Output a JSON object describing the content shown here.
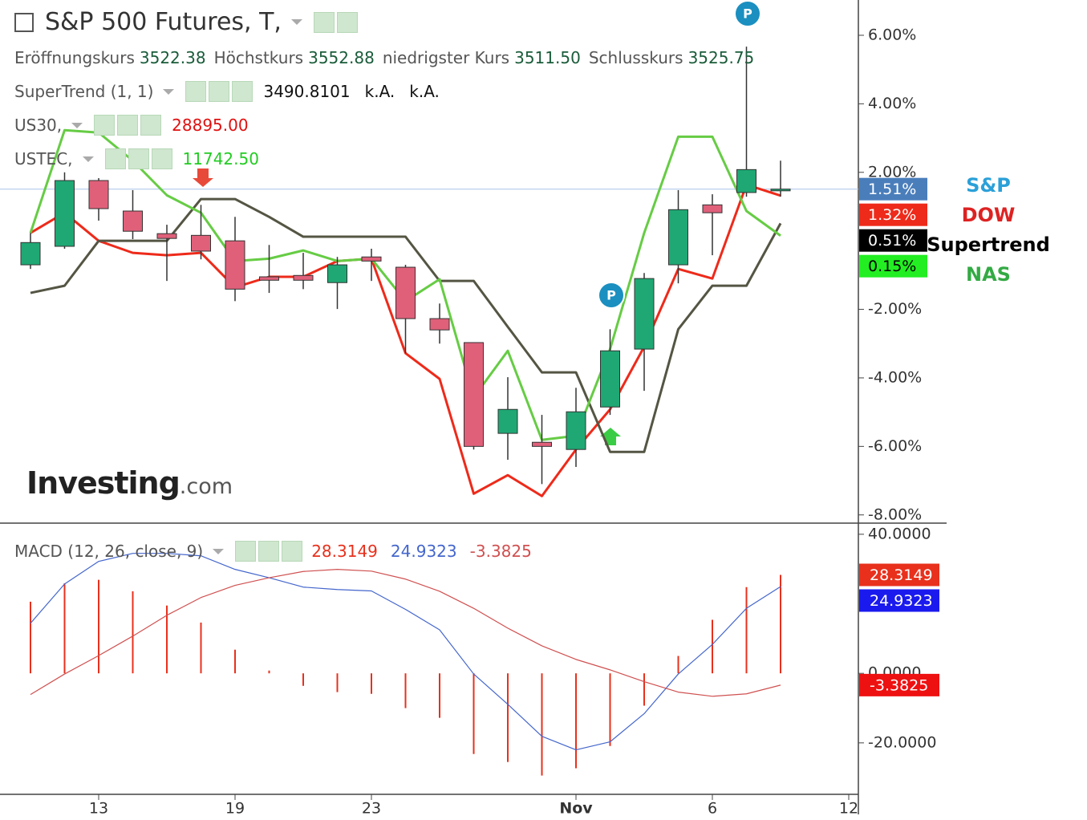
{
  "chart_data": [
    {
      "type": "candlestick",
      "title": "S&P 500 Futures, T,",
      "pivot_label": "P",
      "ohlc": [
        {
          "label": "Eröffnungskurs",
          "value": "3522.38"
        },
        {
          "label": "Höchstkurs",
          "value": "3552.88"
        },
        {
          "label": "niedrigster Kurs",
          "value": "3511.50"
        },
        {
          "label": "Schlusskurs",
          "value": "3525.75"
        }
      ],
      "indicators": [
        {
          "name": "SuperTrend (1, 1)",
          "color": "#111111",
          "values": [
            "3490.8101",
            "k.A.",
            "k.A."
          ]
        },
        {
          "name": "US30,",
          "color": "#e01010",
          "values": [
            "28895.00"
          ]
        },
        {
          "name": "USTEC,",
          "color": "#22cc22",
          "values": [
            "11742.50"
          ]
        }
      ],
      "categories": [
        null,
        null,
        "13",
        null,
        null,
        null,
        "19",
        null,
        null,
        null,
        "23",
        null,
        null,
        null,
        null,
        null,
        "Nov",
        null,
        null,
        null,
        "6",
        null,
        null,
        null,
        "12"
      ],
      "ylim": [
        -8.24,
        7.03
      ],
      "yticks": [
        {
          "value": 6,
          "label": "6.00%"
        },
        {
          "value": 4,
          "label": "4.00%"
        },
        {
          "value": 2,
          "label": "2.00%"
        },
        {
          "value": -2,
          "label": "-2.00%"
        },
        {
          "value": -4,
          "label": "-4.00%"
        },
        {
          "value": -6,
          "label": "-6.00%"
        },
        {
          "value": -8,
          "label": "-8.00%"
        }
      ],
      "series": [
        {
          "name": "S&P",
          "type": "candlestick",
          "color": "#4a7ebb",
          "label_color": "#2ba0d8",
          "up_color": "#1fa874",
          "down_color": "#e0607a",
          "open": [
            -0.7,
            -0.16,
            1.76,
            0.87,
            0.21,
            0.16,
            0.0,
            -1.05,
            -1.01,
            -1.22,
            -0.47,
            -0.77,
            -2.27,
            -2.97,
            -5.62,
            -5.88,
            -6.09,
            -4.85,
            -3.16,
            -0.7,
            1.05,
            1.41,
            1.46,
            null,
            null
          ],
          "high": [
            0.23,
            2.0,
            1.83,
            1.48,
            0.47,
            1.05,
            0.7,
            -0.12,
            -0.35,
            -0.47,
            -0.23,
            -0.7,
            -1.83,
            -2.97,
            -3.98,
            -5.08,
            -4.29,
            -2.58,
            -0.94,
            1.48,
            1.36,
            5.67,
            2.34,
            null,
            null
          ],
          "low": [
            -0.82,
            -0.23,
            0.59,
            0.05,
            -1.17,
            -0.54,
            -1.76,
            -1.52,
            -1.41,
            -1.99,
            -1.17,
            -3.28,
            -3.0,
            -6.09,
            -6.39,
            -7.1,
            -6.6,
            -5.08,
            -4.38,
            -1.24,
            -0.42,
            1.29,
            1.29,
            null,
            null
          ],
          "close": [
            -0.05,
            1.76,
            0.94,
            0.28,
            0.07,
            -0.3,
            -1.41,
            -1.15,
            -1.15,
            -0.7,
            -0.59,
            -2.27,
            -2.6,
            -6.0,
            -4.92,
            -6.0,
            -4.99,
            -3.21,
            -1.1,
            0.91,
            0.82,
            2.08,
            1.51,
            null,
            null
          ],
          "value_labels": [
            null,
            null,
            null,
            null,
            null,
            null,
            null,
            null,
            null,
            null,
            null,
            null,
            null,
            null,
            null,
            null,
            null,
            null,
            null,
            null,
            null,
            null,
            "1.51%",
            null,
            null
          ]
        },
        {
          "name": "DOW",
          "type": "line",
          "color": "#ee2a1a",
          "label_color": "#dd2222",
          "values": [
            0.23,
            0.82,
            0.0,
            -0.35,
            -0.42,
            -0.35,
            -1.36,
            -1.05,
            -1.05,
            -0.59,
            -0.52,
            -3.28,
            -4.03,
            -7.38,
            -6.84,
            -7.45,
            -6.09,
            -4.92,
            -3.09,
            -0.82,
            -1.1,
            1.64,
            1.32,
            null,
            null
          ],
          "value_labels": [
            null,
            null,
            null,
            null,
            null,
            null,
            null,
            null,
            null,
            null,
            null,
            null,
            null,
            null,
            null,
            null,
            null,
            null,
            null,
            null,
            null,
            null,
            "1.32%",
            null,
            null
          ]
        },
        {
          "name": "Supertrend",
          "type": "line",
          "color": "#000000",
          "line_color": "#555544",
          "label_color": "#000000",
          "values": [
            -1.52,
            -1.31,
            0.0,
            0.0,
            0.0,
            1.22,
            1.22,
            0.7,
            0.12,
            0.12,
            0.12,
            0.12,
            -1.17,
            -1.17,
            -2.51,
            -3.84,
            -3.84,
            -6.16,
            -6.16,
            -2.58,
            -1.31,
            -1.31,
            0.51,
            null,
            null
          ],
          "value_labels": [
            null,
            null,
            null,
            null,
            null,
            null,
            null,
            null,
            null,
            null,
            null,
            null,
            null,
            null,
            null,
            null,
            null,
            null,
            null,
            null,
            null,
            null,
            "0.51%",
            null,
            null
          ]
        },
        {
          "name": "NAS",
          "type": "line",
          "color": "#22ee22",
          "line_color": "#66cc44",
          "label_color": "#33aa44",
          "values": [
            0.23,
            3.23,
            3.16,
            2.34,
            1.33,
            0.82,
            -0.59,
            -0.52,
            -0.28,
            -0.59,
            -0.52,
            -1.76,
            -1.12,
            -4.57,
            -3.21,
            -5.81,
            -5.69,
            -3.16,
            0.23,
            3.04,
            3.04,
            0.87,
            0.15,
            null,
            null
          ],
          "value_labels": [
            null,
            null,
            null,
            null,
            null,
            null,
            null,
            null,
            null,
            null,
            null,
            null,
            null,
            null,
            null,
            null,
            null,
            null,
            null,
            null,
            null,
            null,
            "0.15%",
            null,
            null
          ]
        }
      ]
    },
    {
      "type": "macd",
      "title": "MACD (12, 26, close, 9)",
      "ylim": [
        -34.8,
        43.2
      ],
      "yticks": [
        {
          "value": 40,
          "label": "40.0000"
        },
        {
          "value": 0,
          "label": "0.0000"
        },
        {
          "value": -20,
          "label": "-20.0000"
        }
      ],
      "series": [
        {
          "type": "histogram",
          "color": "#e8301c",
          "values": [
            20.6,
            25.9,
            26.9,
            23.6,
            19.5,
            14.6,
            6.8,
            0.8,
            -3.6,
            -5.4,
            -5.9,
            -10.0,
            -12.8,
            -23.2,
            -25.5,
            -29.4,
            -27.3,
            -20.9,
            -9.3,
            5.0,
            15.4,
            24.8,
            28.3149,
            null,
            null
          ],
          "value_labels": [
            null,
            null,
            null,
            null,
            null,
            null,
            null,
            null,
            null,
            null,
            null,
            null,
            null,
            null,
            null,
            null,
            null,
            null,
            null,
            null,
            null,
            null,
            "28.3149",
            null,
            null
          ]
        },
        {
          "type": "line",
          "color": "#1a1aee",
          "line_color": "#4466cc",
          "values": [
            14.4,
            25.7,
            32.2,
            34.5,
            34.5,
            33.8,
            29.9,
            27.5,
            24.8,
            24.1,
            23.7,
            18.4,
            12.5,
            -0.2,
            -8.9,
            -18.1,
            -22.0,
            -19.7,
            -11.6,
            -0.2,
            8.3,
            18.7,
            24.9323,
            null,
            null
          ],
          "value_labels": [
            null,
            null,
            null,
            null,
            null,
            null,
            null,
            null,
            null,
            null,
            null,
            null,
            null,
            null,
            null,
            null,
            null,
            null,
            null,
            null,
            null,
            null,
            "24.9323",
            null,
            null
          ]
        },
        {
          "type": "line",
          "color": "#ee1111",
          "line_color": "#d05050",
          "values": [
            -6.1,
            -0.2,
            5.1,
            10.7,
            16.7,
            21.8,
            25.3,
            27.5,
            29.3,
            29.9,
            29.4,
            27.1,
            23.6,
            18.7,
            13.0,
            7.9,
            4.0,
            1.0,
            -2.4,
            -5.4,
            -6.6,
            -5.9,
            -3.3825,
            null,
            null
          ],
          "value_labels": [
            null,
            null,
            null,
            null,
            null,
            null,
            null,
            null,
            null,
            null,
            null,
            null,
            null,
            null,
            null,
            null,
            null,
            null,
            null,
            null,
            null,
            null,
            "-3.3825",
            null,
            null
          ]
        }
      ]
    }
  ],
  "brand": {
    "name": "Investing",
    "suffix": ".com"
  }
}
